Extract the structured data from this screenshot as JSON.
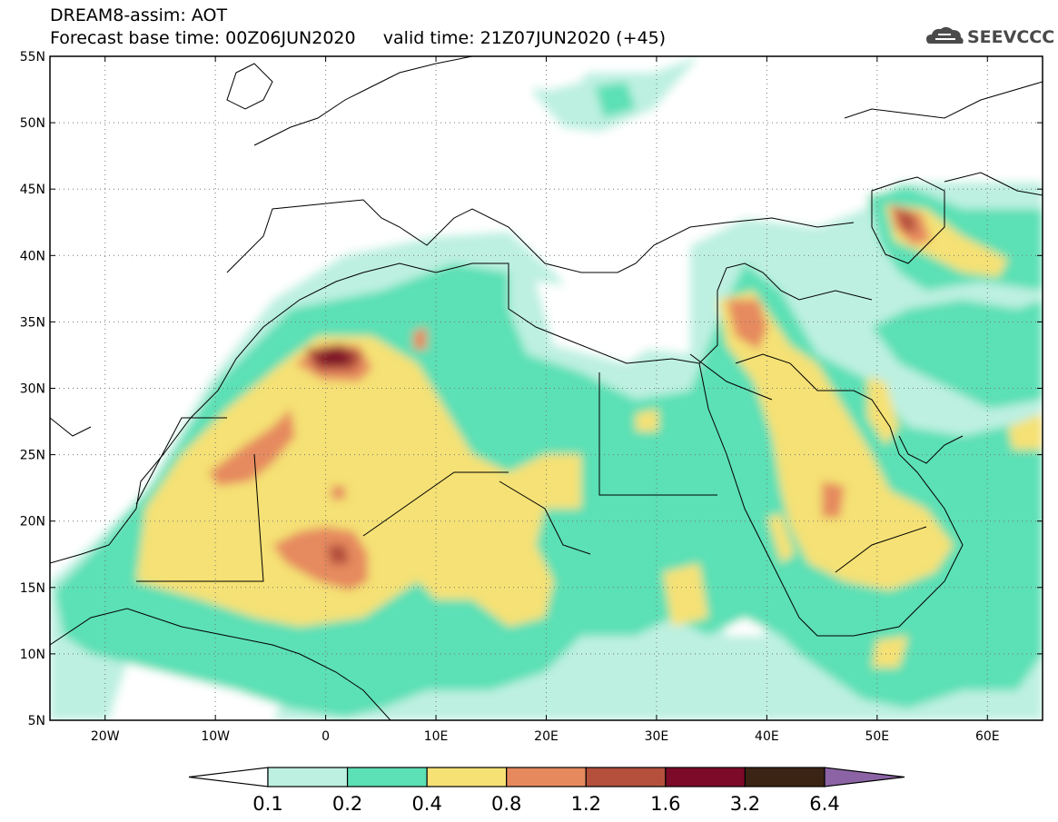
{
  "header": {
    "line1": "DREAM8-assim: AOT",
    "line2": "Forecast base time: 00Z06JUN2020     valid time: 21Z07JUN2020 (+45)"
  },
  "logo": {
    "text": "SEEVCCC",
    "icon": "cloud-icon"
  },
  "map": {
    "lon_range": [
      -25,
      65
    ],
    "lat_range": [
      5,
      55
    ],
    "lat_ticks": [
      {
        "value": 55,
        "label": "55N"
      },
      {
        "value": 50,
        "label": "50N"
      },
      {
        "value": 45,
        "label": "45N"
      },
      {
        "value": 40,
        "label": "40N"
      },
      {
        "value": 35,
        "label": "35N"
      },
      {
        "value": 30,
        "label": "30N"
      },
      {
        "value": 25,
        "label": "25N"
      },
      {
        "value": 20,
        "label": "20N"
      },
      {
        "value": 15,
        "label": "15N"
      },
      {
        "value": 10,
        "label": "10N"
      },
      {
        "value": 5,
        "label": "5N"
      }
    ],
    "lon_ticks": [
      {
        "value": -20,
        "label": "20W"
      },
      {
        "value": -10,
        "label": "10W"
      },
      {
        "value": 0,
        "label": "0"
      },
      {
        "value": 10,
        "label": "10E"
      },
      {
        "value": 20,
        "label": "20E"
      },
      {
        "value": 30,
        "label": "30E"
      },
      {
        "value": 40,
        "label": "40E"
      },
      {
        "value": 50,
        "label": "50E"
      },
      {
        "value": 60,
        "label": "60E"
      }
    ],
    "grid": true
  },
  "colorbar": {
    "levels": [
      "0.1",
      "0.2",
      "0.4",
      "0.8",
      "1.2",
      "1.6",
      "3.2",
      "6.4"
    ],
    "colors": [
      "#ffffff",
      "#bdf0e1",
      "#5ce0b5",
      "#f5e174",
      "#e68a5e",
      "#b4503c",
      "#7d0a28",
      "#3c2414",
      "#8c64a5"
    ]
  }
}
